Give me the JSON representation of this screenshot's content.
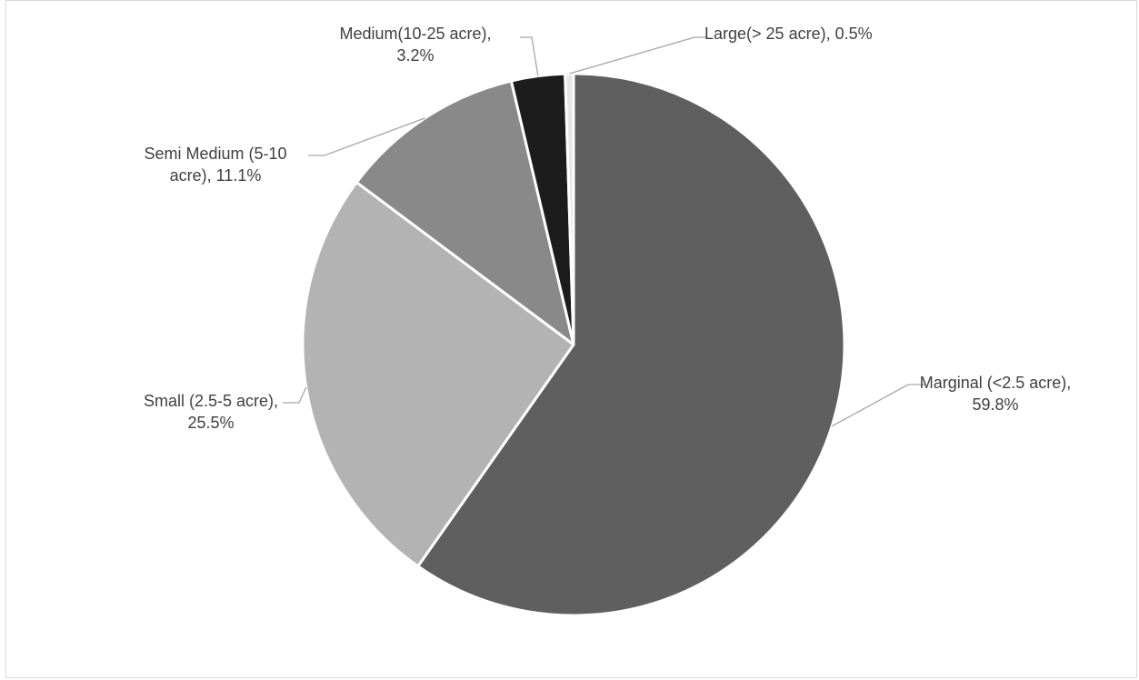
{
  "chart_data": {
    "type": "pie",
    "title": "",
    "slices": [
      {
        "label_line1": "Marginal (<2.5 acre),",
        "label_line2": "59.8%",
        "value": 59.8,
        "color": "#5f5f5f"
      },
      {
        "label_line1": "Small (2.5-5 acre),",
        "label_line2": "25.5%",
        "value": 25.5,
        "color": "#b3b3b3"
      },
      {
        "label_line1": "Semi Medium (5-10",
        "label_line2": "acre), 11.1%",
        "value": 11.1,
        "color": "#898989"
      },
      {
        "label_line1": "Medium(10-25 acre),",
        "label_line2": "3.2%",
        "value": 3.2,
        "color": "#1c1c1c"
      },
      {
        "label_line1": "Large(> 25 acre), 0.5%",
        "label_line2": "",
        "value": 0.5,
        "color": "#e6e6e6"
      }
    ],
    "start_angle": "12 o'clock",
    "direction": "clockwise",
    "legend": "none",
    "grid": false
  }
}
